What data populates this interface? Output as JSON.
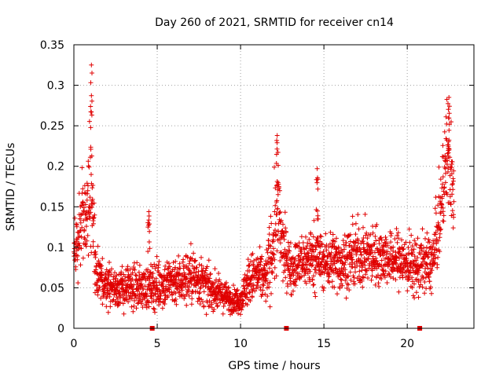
{
  "chart_data": {
    "type": "scatter",
    "title": "Day 260 of 2021, SRMTID for receiver cn14",
    "xlabel": "GPS time / hours",
    "ylabel": "SRMTID / TECUs",
    "xlim": [
      0,
      24
    ],
    "ylim": [
      0,
      0.35
    ],
    "x_ticks": [
      0,
      5,
      10,
      15,
      20
    ],
    "x_tick_labels": [
      "0",
      "5",
      "10",
      "15",
      "20"
    ],
    "y_ticks": [
      0,
      0.05,
      0.1,
      0.15,
      0.2,
      0.25,
      0.3,
      0.35
    ],
    "y_tick_labels": [
      "0",
      "0.05",
      "0.1",
      "0.15",
      "0.2",
      "0.25",
      "0.3",
      "0.35"
    ],
    "grid": true,
    "marker": "+",
    "color": "#e00000",
    "x_range_of_data": [
      0,
      22.8
    ],
    "baseline_markers_x": [
      4.7,
      12.75,
      20.75
    ],
    "envelope": {
      "x": [
        0,
        0.25,
        0.5,
        0.75,
        1.0,
        1.25,
        1.5,
        2.0,
        2.5,
        3.0,
        3.5,
        4.0,
        4.5,
        5.0,
        5.5,
        6.0,
        6.5,
        7.0,
        7.5,
        8.0,
        8.5,
        9.0,
        9.5,
        10.0,
        10.5,
        11.0,
        11.5,
        12.0,
        12.25,
        12.5,
        13.0,
        13.5,
        14.0,
        14.5,
        15.0,
        15.5,
        16.0,
        16.5,
        17.0,
        17.5,
        18.0,
        18.5,
        19.0,
        19.5,
        20.0,
        20.5,
        21.0,
        21.5,
        22.0,
        22.25,
        22.5,
        22.8
      ],
      "median": [
        0.09,
        0.11,
        0.15,
        0.13,
        0.2,
        0.09,
        0.06,
        0.055,
        0.05,
        0.05,
        0.05,
        0.05,
        0.05,
        0.055,
        0.055,
        0.06,
        0.06,
        0.065,
        0.06,
        0.05,
        0.045,
        0.04,
        0.035,
        0.035,
        0.06,
        0.065,
        0.06,
        0.11,
        0.14,
        0.1,
        0.075,
        0.08,
        0.085,
        0.09,
        0.08,
        0.085,
        0.08,
        0.085,
        0.09,
        0.09,
        0.09,
        0.09,
        0.085,
        0.085,
        0.08,
        0.075,
        0.08,
        0.08,
        0.14,
        0.2,
        0.22,
        0.15
      ],
      "spread": [
        0.035,
        0.04,
        0.05,
        0.05,
        0.09,
        0.035,
        0.03,
        0.025,
        0.025,
        0.025,
        0.025,
        0.025,
        0.025,
        0.03,
        0.03,
        0.03,
        0.03,
        0.035,
        0.03,
        0.025,
        0.02,
        0.018,
        0.015,
        0.015,
        0.03,
        0.03,
        0.03,
        0.06,
        0.07,
        0.04,
        0.03,
        0.03,
        0.035,
        0.04,
        0.03,
        0.035,
        0.035,
        0.035,
        0.04,
        0.035,
        0.035,
        0.035,
        0.03,
        0.035,
        0.035,
        0.035,
        0.035,
        0.035,
        0.05,
        0.06,
        0.07,
        0.05
      ]
    },
    "peaks": [
      {
        "x": 1.05,
        "y": 0.325
      },
      {
        "x": 12.2,
        "y": 0.238
      },
      {
        "x": 14.6,
        "y": 0.197
      },
      {
        "x": 22.5,
        "y": 0.285
      },
      {
        "x": 4.5,
        "y": 0.144
      }
    ],
    "n_points": 2400
  }
}
